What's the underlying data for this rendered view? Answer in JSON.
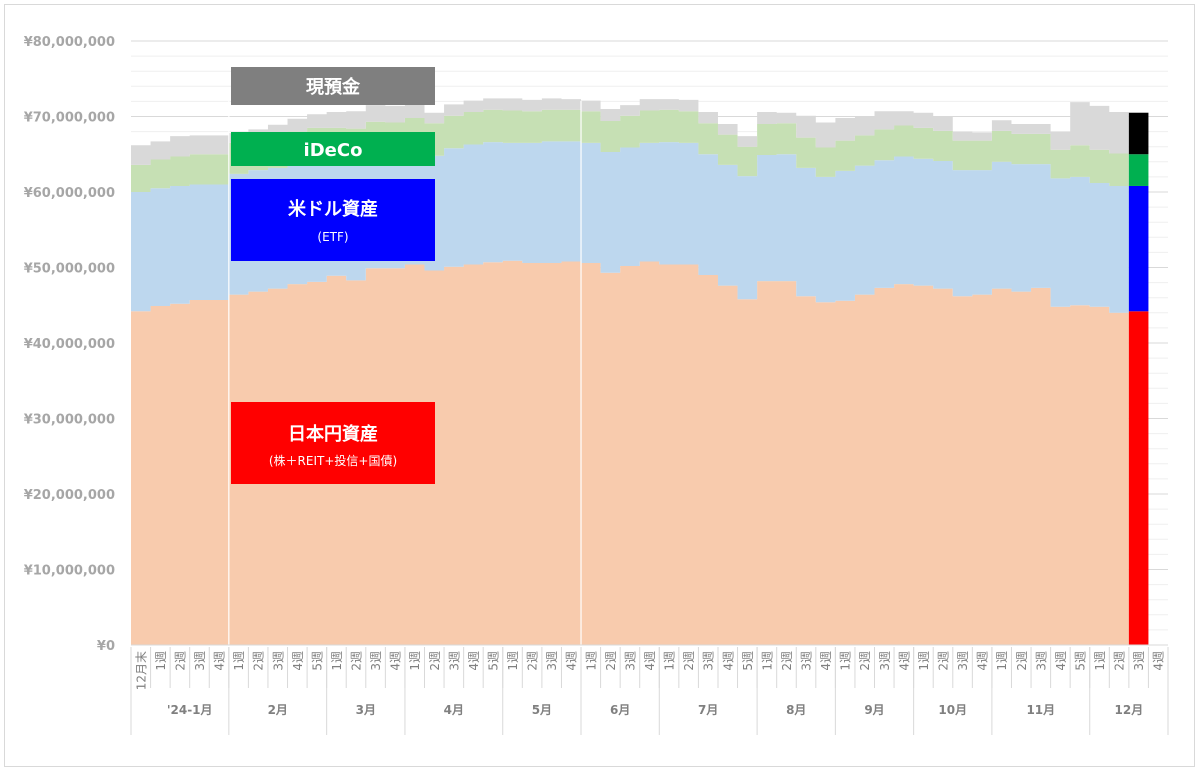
{
  "chart_data": {
    "type": "area",
    "stacked": true,
    "y_ticks": [
      "¥80,000,000",
      "¥70,000,000",
      "¥60,000,000",
      "¥50,000,000",
      "¥40,000,000",
      "¥30,000,000",
      "¥20,000,000",
      "¥10,000,000",
      "¥0"
    ],
    "ylim": [
      0,
      80000000
    ],
    "x_labels": [
      "12月末",
      "1週",
      "2週",
      "3週",
      "4週",
      "1週",
      "2週",
      "3週",
      "4週",
      "5週",
      "1週",
      "2週",
      "3週",
      "4週",
      "1週",
      "2週",
      "3週",
      "4週",
      "5週",
      "1週",
      "2週",
      "3週",
      "4週",
      "1週",
      "2週",
      "3週",
      "4週",
      "1週",
      "2週",
      "3週",
      "4週",
      "5週",
      "1週",
      "2週",
      "3週",
      "4週",
      "1週",
      "2週",
      "3週",
      "4週",
      "1週",
      "2週",
      "3週",
      "4週",
      "1週",
      "2週",
      "3週",
      "4週",
      "5週",
      "1週",
      "2週",
      "3週",
      "4週"
    ],
    "months": [
      {
        "label": "'24-1月",
        "span": 4
      },
      {
        "label": "2月",
        "span": 5
      },
      {
        "label": "3月",
        "span": 4
      },
      {
        "label": "4月",
        "span": 5
      },
      {
        "label": "5月",
        "span": 4
      },
      {
        "label": "6月",
        "span": 4
      },
      {
        "label": "7月",
        "span": 5
      },
      {
        "label": "8月",
        "span": 4
      },
      {
        "label": "9月",
        "span": 4
      },
      {
        "label": "10月",
        "span": 4
      },
      {
        "label": "11月",
        "span": 5
      },
      {
        "label": "12月",
        "span": 4
      }
    ],
    "series": [
      {
        "name": "日本円資産",
        "sub": "（株＋REIT+投信+国債）",
        "color": "#f8cbad",
        "current_color": "#ff0000",
        "values": [
          44.2,
          44.9,
          45.2,
          45.7,
          45.7,
          46.4,
          46.8,
          47.2,
          47.8,
          48.1,
          48.9,
          48.3,
          49.9,
          49.9,
          50.4,
          49.6,
          50.1,
          50.4,
          50.7,
          50.9,
          50.6,
          50.6,
          50.8,
          50.6,
          49.3,
          50.2,
          50.8,
          50.4,
          50.4,
          49.0,
          47.6,
          45.8,
          48.2,
          48.2,
          46.2,
          45.4,
          45.6,
          46.4,
          47.3,
          47.8,
          47.6,
          47.2,
          46.2,
          46.4,
          47.2,
          46.8,
          47.3,
          44.8,
          45.0,
          44.8,
          44.0
        ]
      },
      {
        "name": "米ドル資産",
        "sub": "(ETF)",
        "color": "#bdd7ee",
        "current_color": "#0000ff",
        "values": [
          15.8,
          15.6,
          15.6,
          15.3,
          15.3,
          16.0,
          16.1,
          16.0,
          16.0,
          16.1,
          15.4,
          16.0,
          15.1,
          15.0,
          15.1,
          15.2,
          15.7,
          15.9,
          15.9,
          15.6,
          15.9,
          16.1,
          15.9,
          15.9,
          16.0,
          15.7,
          15.7,
          16.2,
          16.1,
          16.0,
          16.0,
          16.3,
          16.7,
          16.8,
          17.0,
          16.6,
          17.2,
          17.1,
          16.9,
          16.9,
          16.8,
          16.9,
          16.7,
          16.5,
          16.8,
          16.9,
          16.4,
          17.0,
          17.0,
          16.4,
          16.8
        ]
      },
      {
        "name": "iDeCo",
        "color": "#c6e0b4",
        "current_color": "#00b050",
        "values": [
          3.6,
          3.8,
          3.9,
          4.0,
          4.0,
          4.1,
          4.1,
          4.1,
          4.2,
          4.3,
          4.2,
          4.1,
          4.3,
          4.3,
          4.3,
          4.3,
          4.3,
          4.3,
          4.3,
          4.3,
          4.2,
          4.2,
          4.2,
          4.2,
          4.1,
          4.2,
          4.3,
          4.3,
          4.2,
          4.1,
          4.0,
          3.9,
          4.1,
          4.1,
          4.0,
          3.9,
          4.0,
          4.0,
          4.1,
          4.1,
          4.1,
          4.0,
          3.9,
          3.9,
          4.1,
          4.0,
          4.0,
          3.8,
          4.2,
          4.4,
          4.3
        ]
      },
      {
        "name": "現預金",
        "color": "#d9d9d9",
        "current_color": "#000000",
        "values": [
          2.6,
          2.4,
          2.7,
          2.5,
          2.5,
          1.3,
          1.3,
          1.6,
          1.7,
          1.8,
          2.1,
          2.3,
          2.2,
          2.2,
          1.8,
          1.4,
          1.5,
          1.5,
          1.5,
          1.6,
          1.5,
          1.5,
          1.4,
          1.4,
          1.6,
          1.4,
          1.5,
          1.4,
          1.5,
          1.5,
          1.4,
          1.4,
          1.6,
          1.4,
          2.9,
          3.3,
          3.0,
          2.5,
          2.4,
          1.9,
          2.0,
          1.9,
          1.2,
          1.1,
          1.4,
          1.3,
          1.3,
          2.4,
          5.7,
          5.8,
          5.5
        ]
      }
    ],
    "current_week_index": 51,
    "current_bar": [
      44.2,
      16.6,
      4.2,
      5.5
    ],
    "grid": true,
    "vertical_markers_after": [
      5,
      23
    ]
  },
  "labels": {
    "cash": "現預金",
    "ideco": "iDeCo",
    "usd": "米ドル資産",
    "usd_sub": "(ETF)",
    "jpy": "日本円資産",
    "jpy_sub": "(株＋REIT+投信+国債)"
  },
  "colors": {
    "cash_box": "#7f7f7f",
    "ideco_box": "#00b050",
    "usd_box": "#0000ff",
    "jpy_box": "#ff0000"
  }
}
